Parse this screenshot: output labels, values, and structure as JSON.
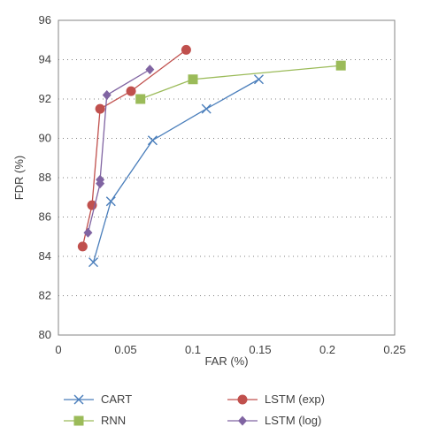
{
  "chart_data": {
    "type": "line",
    "title": "",
    "xlabel": "FAR (%)",
    "ylabel": "FDR (%)",
    "xlim": [
      0,
      0.25
    ],
    "ylim": [
      80,
      96
    ],
    "xticks": [
      0,
      0.05,
      0.1,
      0.15,
      0.2,
      0.25
    ],
    "xtick_labels": [
      "0",
      "0.05",
      "0.1",
      "0.15",
      "0.2",
      "0.25"
    ],
    "yticks": [
      80,
      82,
      84,
      86,
      88,
      90,
      92,
      94,
      96
    ],
    "ytick_labels": [
      "80",
      "82",
      "84",
      "86",
      "88",
      "90",
      "92",
      "94",
      "96"
    ],
    "grid": "horizontal dotted",
    "legend_position": "bottom",
    "series": [
      {
        "name": "CART",
        "color": "#4a7ebb",
        "marker": "x",
        "points": [
          [
            0.026,
            83.7
          ],
          [
            0.039,
            86.8
          ],
          [
            0.07,
            89.9
          ],
          [
            0.11,
            91.5
          ],
          [
            0.149,
            93.0
          ]
        ]
      },
      {
        "name": "RNN",
        "color": "#9bbb59",
        "marker": "square",
        "points": [
          [
            0.061,
            92.0
          ],
          [
            0.1,
            93.0
          ],
          [
            0.21,
            93.7
          ]
        ]
      },
      {
        "name": "LSTM (exp)",
        "color": "#c0504d",
        "marker": "circle",
        "points": [
          [
            0.018,
            84.5
          ],
          [
            0.025,
            86.6
          ],
          [
            0.031,
            91.5
          ],
          [
            0.054,
            92.4
          ],
          [
            0.095,
            94.5
          ]
        ]
      },
      {
        "name": "LSTM (log)",
        "color": "#8064a2",
        "marker": "diamond",
        "points": [
          [
            0.022,
            85.2
          ],
          [
            0.031,
            87.7
          ],
          [
            0.031,
            87.9
          ],
          [
            0.036,
            92.2
          ],
          [
            0.068,
            93.5
          ]
        ]
      }
    ]
  }
}
